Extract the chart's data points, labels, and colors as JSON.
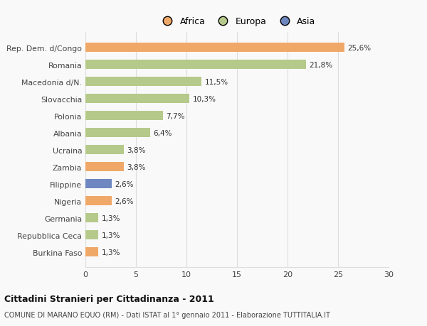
{
  "categories": [
    "Burkina Faso",
    "Repubblica Ceca",
    "Germania",
    "Nigeria",
    "Filippine",
    "Zambia",
    "Ucraina",
    "Albania",
    "Polonia",
    "Slovacchia",
    "Macedonia d/N.",
    "Romania",
    "Rep. Dem. d/Congo"
  ],
  "values": [
    1.3,
    1.3,
    1.3,
    2.6,
    2.6,
    3.8,
    3.8,
    6.4,
    7.7,
    10.3,
    11.5,
    21.8,
    25.6
  ],
  "labels": [
    "1,3%",
    "1,3%",
    "1,3%",
    "2,6%",
    "2,6%",
    "3,8%",
    "3,8%",
    "6,4%",
    "7,7%",
    "10,3%",
    "11,5%",
    "21,8%",
    "25,6%"
  ],
  "colors": [
    "#f0a868",
    "#b5c98a",
    "#b5c98a",
    "#f0a868",
    "#6e87c0",
    "#f0a868",
    "#b5c98a",
    "#b5c98a",
    "#b5c98a",
    "#b5c98a",
    "#b5c98a",
    "#b5c98a",
    "#f0a868"
  ],
  "legend": [
    {
      "label": "Africa",
      "color": "#f0a868"
    },
    {
      "label": "Europa",
      "color": "#b5c98a"
    },
    {
      "label": "Asia",
      "color": "#6e87c0"
    }
  ],
  "xlim": [
    0,
    30
  ],
  "xticks": [
    0,
    5,
    10,
    15,
    20,
    25,
    30
  ],
  "title": "Cittadini Stranieri per Cittadinanza - 2011",
  "subtitle": "COMUNE DI MARANO EQUO (RM) - Dati ISTAT al 1° gennaio 2011 - Elaborazione TUTTITALIA.IT",
  "background_color": "#f9f9f9",
  "grid_color": "#dddddd"
}
